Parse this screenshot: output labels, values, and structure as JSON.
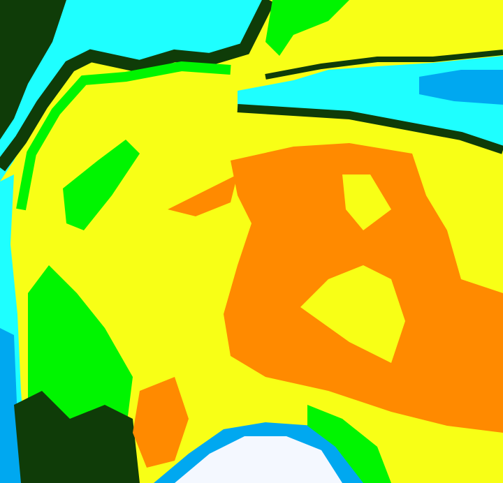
{
  "image": {
    "kind": "false-color satellite cloud-top image",
    "palette": {
      "cyan": "#1effff",
      "dark_green": "#0f3c08",
      "bright_green": "#00f500",
      "lime": "#a8ff00",
      "yellow": "#f8ff16",
      "orange": "#ff8a00",
      "light_blue": "#00a8f0",
      "white": "#f4f8ff"
    }
  }
}
